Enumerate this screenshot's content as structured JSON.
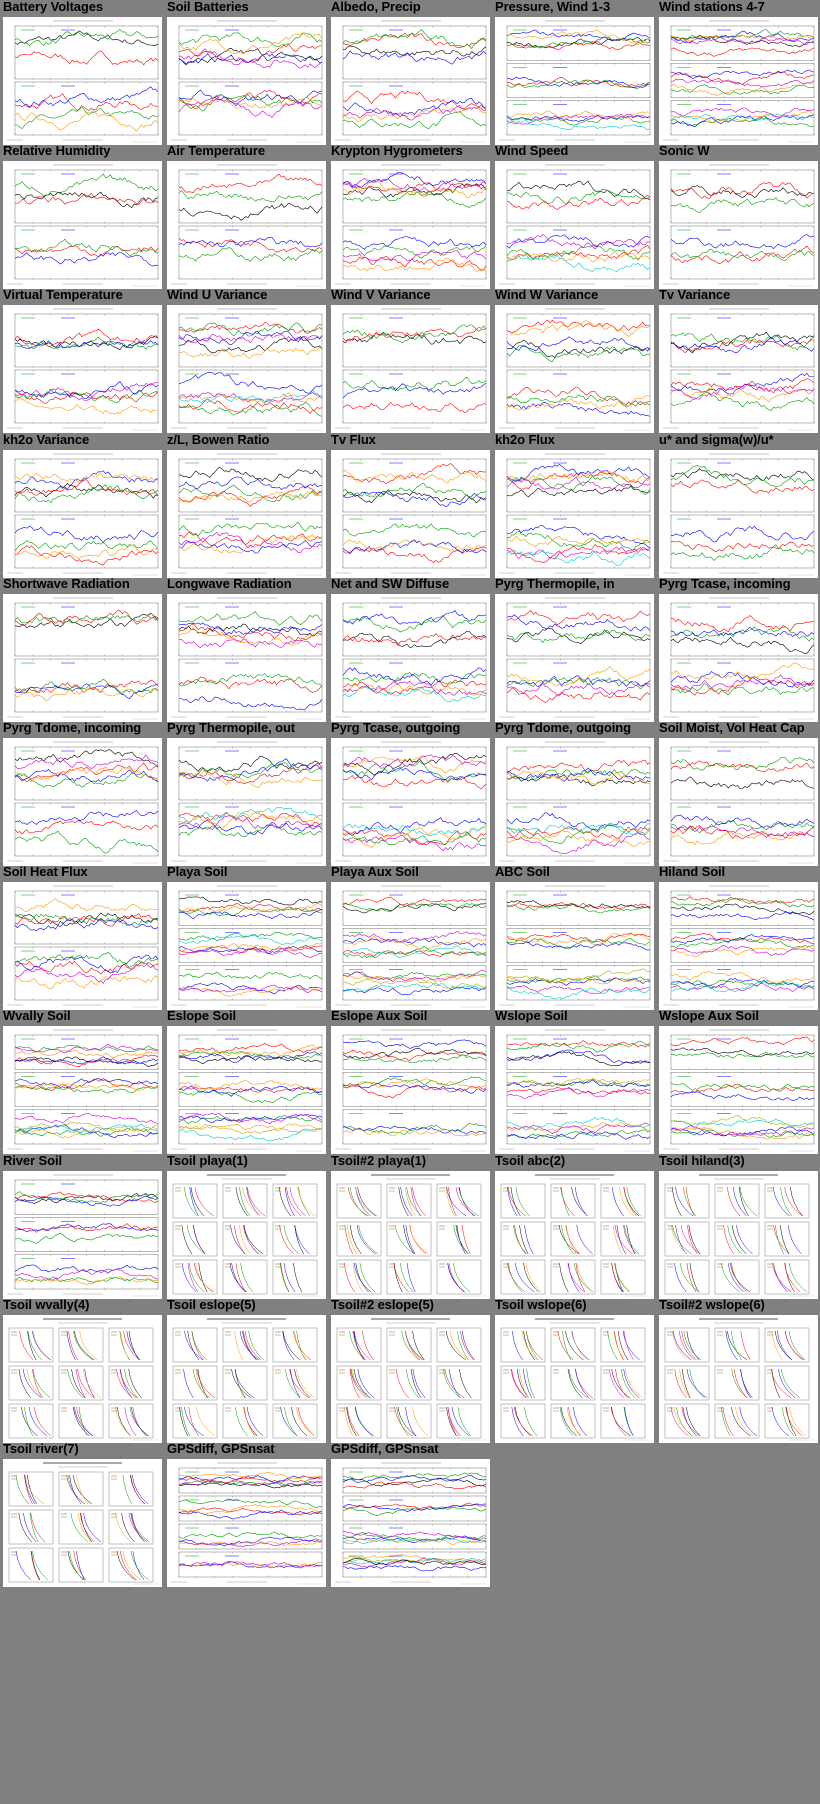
{
  "page": {
    "background": "#808080",
    "series_colors": [
      "#000000",
      "#ff0000",
      "#00a000",
      "#0000ff",
      "#ff9900",
      "#cc00cc",
      "#00cccc",
      "#b0b000"
    ]
  },
  "panels": [
    {
      "title": "Battery Voltages",
      "plot": "timeseries",
      "subplots": 2
    },
    {
      "title": "Soil Batteries",
      "plot": "timeseries",
      "subplots": 2
    },
    {
      "title": "Albedo, Precip",
      "plot": "timeseries",
      "subplots": 2
    },
    {
      "title": "Pressure, Wind 1-3",
      "plot": "timeseries",
      "subplots": 3
    },
    {
      "title": "Wind stations 4-7",
      "plot": "timeseries",
      "subplots": 3
    },
    {
      "title": "Relative Humidity",
      "plot": "timeseries",
      "subplots": 2
    },
    {
      "title": "Air Temperature",
      "plot": "timeseries",
      "subplots": 2
    },
    {
      "title": "Krypton Hygrometers",
      "plot": "timeseries",
      "subplots": 2
    },
    {
      "title": "Wind Speed",
      "plot": "timeseries",
      "subplots": 2
    },
    {
      "title": "Sonic W",
      "plot": "timeseries",
      "subplots": 2
    },
    {
      "title": "Virtual Temperature",
      "plot": "timeseries",
      "subplots": 2
    },
    {
      "title": "Wind U Variance",
      "plot": "timeseries",
      "subplots": 2
    },
    {
      "title": "Wind V Variance",
      "plot": "timeseries",
      "subplots": 2
    },
    {
      "title": "Wind W Variance",
      "plot": "timeseries",
      "subplots": 2
    },
    {
      "title": "Tv Variance",
      "plot": "timeseries",
      "subplots": 2
    },
    {
      "title": "kh2o Variance",
      "plot": "timeseries",
      "subplots": 2
    },
    {
      "title": "z/L, Bowen Ratio",
      "plot": "timeseries",
      "subplots": 2
    },
    {
      "title": "Tv Flux",
      "plot": "timeseries",
      "subplots": 2
    },
    {
      "title": "kh2o Flux",
      "plot": "timeseries",
      "subplots": 2
    },
    {
      "title": "u* and sigma(w)/u*",
      "plot": "timeseries",
      "subplots": 2
    },
    {
      "title": "Shortwave Radiation",
      "plot": "timeseries",
      "subplots": 2
    },
    {
      "title": "Longwave Radiation",
      "plot": "timeseries",
      "subplots": 2
    },
    {
      "title": "Net and SW Diffuse",
      "plot": "timeseries",
      "subplots": 2
    },
    {
      "title": "Pyrg Thermopile, in",
      "plot": "timeseries",
      "subplots": 2
    },
    {
      "title": "Pyrg Tcase, incoming",
      "plot": "timeseries",
      "subplots": 2
    },
    {
      "title": "Pyrg Tdome, incoming",
      "plot": "timeseries",
      "subplots": 2
    },
    {
      "title": "Pyrg Thermopile, out",
      "plot": "timeseries",
      "subplots": 2
    },
    {
      "title": "Pyrg Tcase, outgoing",
      "plot": "timeseries",
      "subplots": 2
    },
    {
      "title": "Pyrg Tdome, outgoing",
      "plot": "timeseries",
      "subplots": 2
    },
    {
      "title": "Soil Moist, Vol Heat Cap",
      "plot": "timeseries",
      "subplots": 2
    },
    {
      "title": "Soil Heat Flux",
      "plot": "timeseries",
      "subplots": 2
    },
    {
      "title": "Playa Soil",
      "plot": "timeseries",
      "subplots": 3
    },
    {
      "title": "Playa Aux Soil",
      "plot": "timeseries",
      "subplots": 3
    },
    {
      "title": "ABC Soil",
      "plot": "timeseries",
      "subplots": 3
    },
    {
      "title": "Hiland Soil",
      "plot": "timeseries",
      "subplots": 3
    },
    {
      "title": "Wvally Soil",
      "plot": "timeseries",
      "subplots": 3
    },
    {
      "title": "Eslope Soil",
      "plot": "timeseries",
      "subplots": 3
    },
    {
      "title": "Eslope Aux Soil",
      "plot": "timeseries",
      "subplots": 3
    },
    {
      "title": "Wslope Soil",
      "plot": "timeseries",
      "subplots": 3
    },
    {
      "title": "Wslope Aux Soil",
      "plot": "timeseries",
      "subplots": 3
    },
    {
      "title": "River Soil",
      "plot": "timeseries",
      "subplots": 3
    },
    {
      "title": "Tsoil playa(1)",
      "plot": "profiles",
      "subplots": 9
    },
    {
      "title": "Tsoil#2 playa(1)",
      "plot": "profiles",
      "subplots": 9
    },
    {
      "title": "Tsoil abc(2)",
      "plot": "profiles",
      "subplots": 9
    },
    {
      "title": "Tsoil hiland(3)",
      "plot": "profiles",
      "subplots": 9
    },
    {
      "title": "Tsoil wvally(4)",
      "plot": "profiles",
      "subplots": 9
    },
    {
      "title": "Tsoil eslope(5)",
      "plot": "profiles",
      "subplots": 9
    },
    {
      "title": "Tsoil#2 eslope(5)",
      "plot": "profiles",
      "subplots": 9
    },
    {
      "title": "Tsoil wslope(6)",
      "plot": "profiles",
      "subplots": 9
    },
    {
      "title": "Tsoil#2 wslope(6)",
      "plot": "profiles",
      "subplots": 9
    },
    {
      "title": "Tsoil river(7)",
      "plot": "profiles",
      "subplots": 9
    },
    {
      "title": "GPSdiff, GPSnsat",
      "plot": "timeseries",
      "subplots": 4
    },
    {
      "title": "GPSdiff, GPSnsat",
      "plot": "timeseries",
      "subplots": 4
    }
  ]
}
